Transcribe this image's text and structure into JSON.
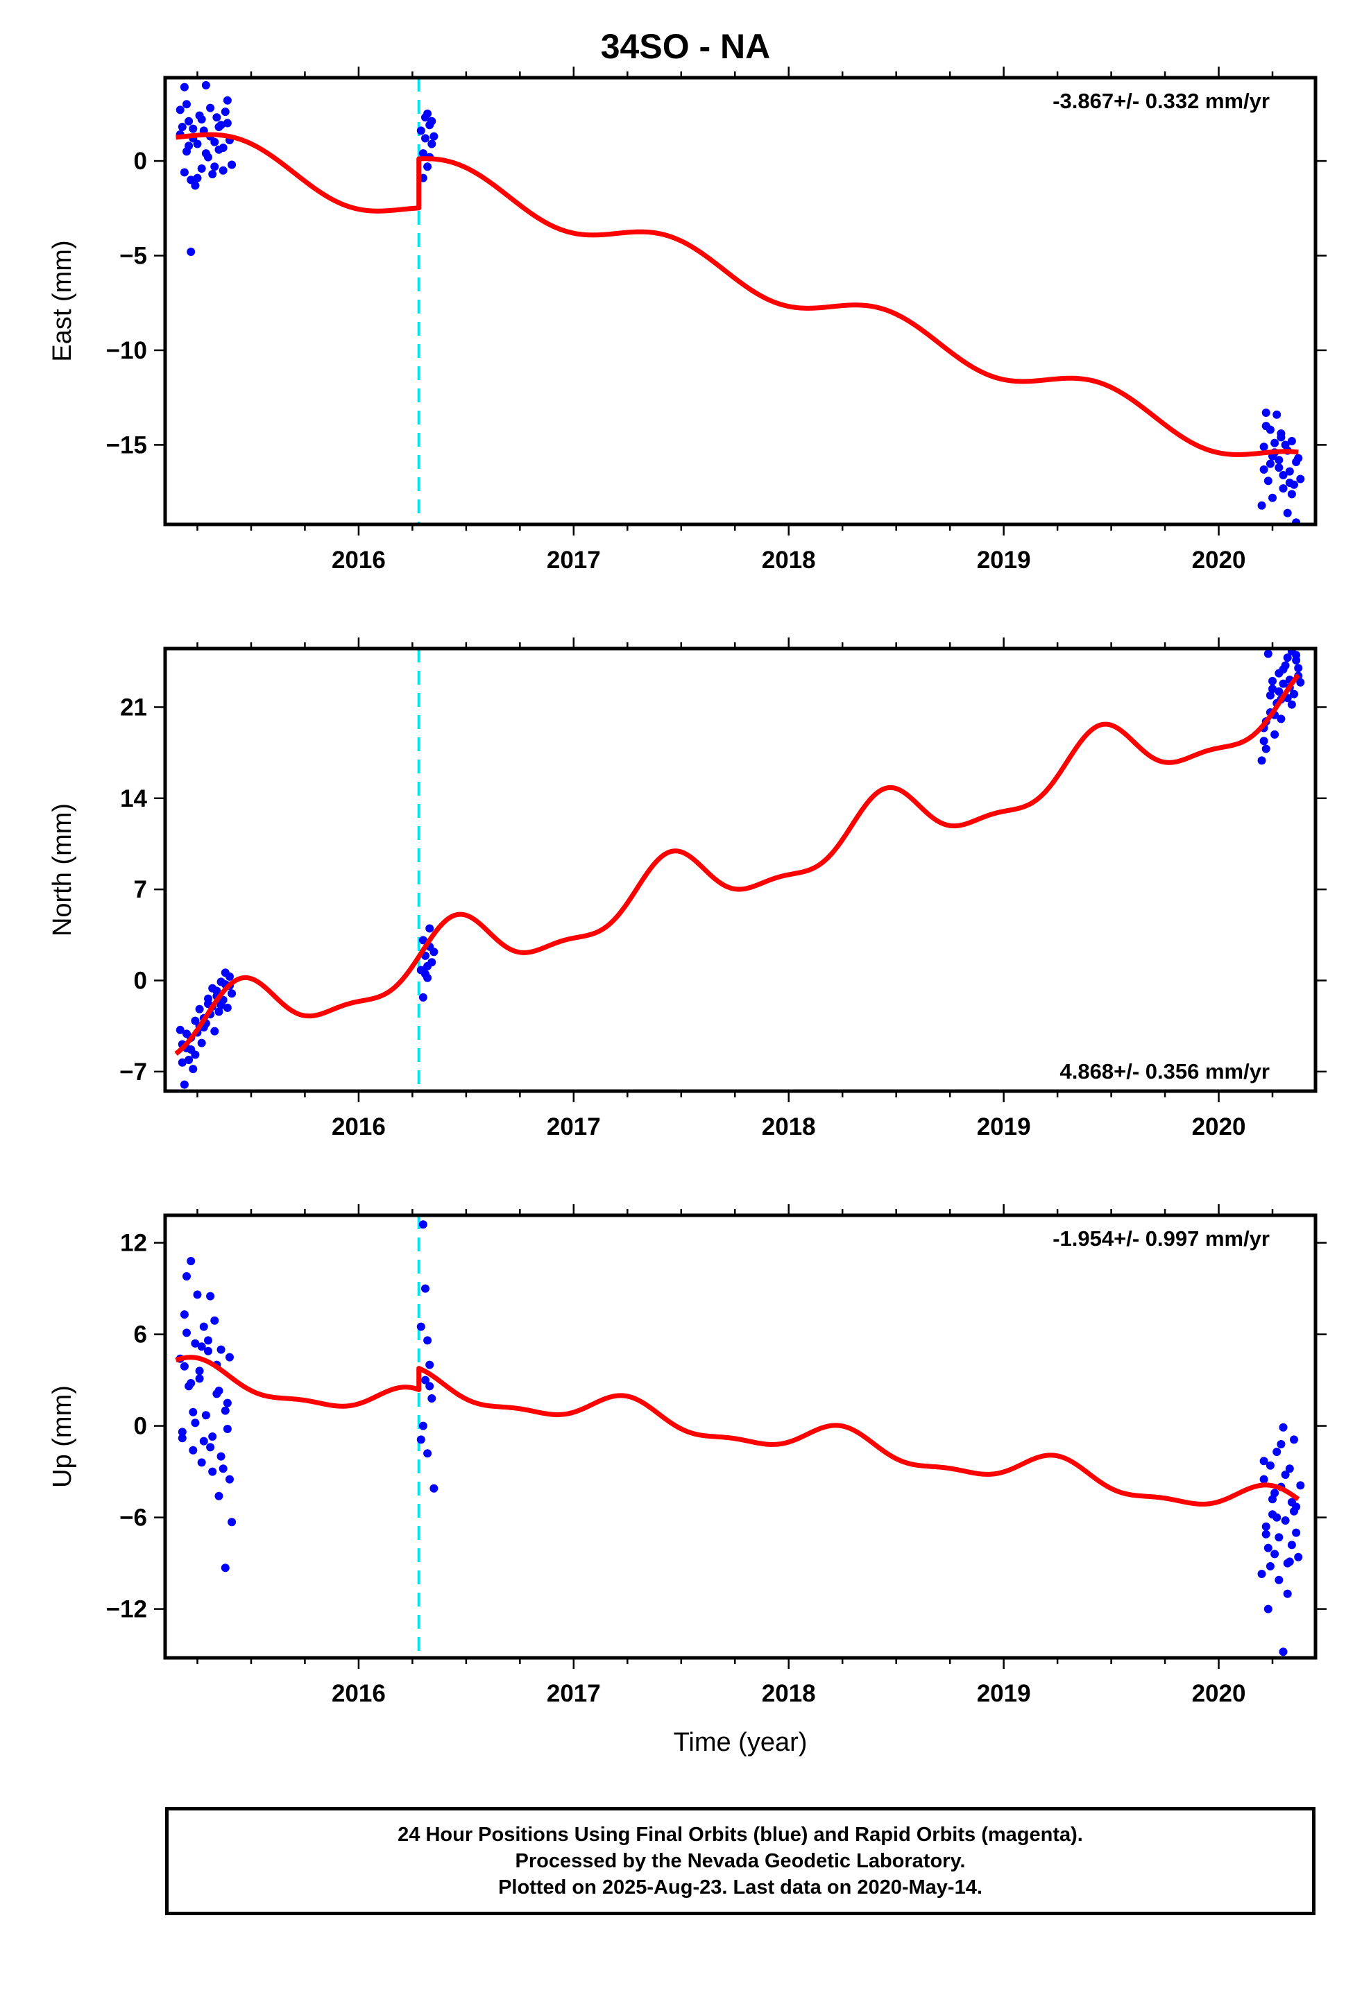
{
  "title": "34SO - NA",
  "footer": {
    "line1": "24 Hour Positions Using Final Orbits (blue) and Rapid Orbits (magenta).",
    "line2": "Processed by the Nevada Geodetic Laboratory.",
    "line3": "Plotted on 2025-Aug-23. Last data on 2020-May-14."
  },
  "colors": {
    "final_orbits": "#0000ff",
    "model_fit": "#ff0000",
    "equipment_change": "#00e5ee",
    "frame": "#000000"
  },
  "chart_data": [
    {
      "type": "scatter",
      "ylabel": "East (mm)",
      "xlabel": "",
      "annotation": "-3.867+/- 0.332 mm/yr",
      "annotation_position": "top-right",
      "xlim": [
        2015.1,
        2020.45
      ],
      "ylim": [
        -19.2,
        4.4
      ],
      "xticks": [
        2016,
        2017,
        2018,
        2019,
        2020
      ],
      "xticklabels": [
        "2016",
        "2017",
        "2018",
        "2019",
        "2020"
      ],
      "yticks": [
        -15,
        -10,
        -5,
        0
      ],
      "yticklabels": [
        "−15",
        "−10",
        "−5",
        "0"
      ],
      "vline": 2016.28,
      "observations": [
        {
          "t": [
            2015.17,
            2015.18,
            2015.19,
            2015.2,
            2015.21,
            2015.22,
            2015.23,
            2015.24,
            2015.25,
            2015.26,
            2015.27,
            2015.28,
            2015.29,
            2015.3,
            2015.31,
            2015.32,
            2015.33,
            2015.34,
            2015.35,
            2015.36,
            2015.37,
            2015.38,
            2015.39,
            2015.4,
            2015.41,
            2015.17,
            2015.19,
            2015.21,
            2015.23,
            2015.25,
            2015.27,
            2015.29,
            2015.31,
            2015.33,
            2015.35,
            2015.37,
            2015.39,
            2015.2,
            2015.22
          ],
          "y": [
            2.7,
            1.8,
            3.9,
            0.5,
            2.1,
            -4.8,
            1.2,
            -1.3,
            0.9,
            2.4,
            -0.4,
            1.6,
            4.0,
            0.2,
            2.8,
            -0.7,
            1.0,
            2.3,
            0.6,
            1.9,
            -0.5,
            2.6,
            3.2,
            1.1,
            -0.2,
            1.4,
            -0.6,
            0.8,
            1.7,
            -0.9,
            2.2,
            0.4,
            1.3,
            -0.3,
            1.8,
            0.7,
            2.0,
            3.0,
            -1.0
          ]
        },
        {
          "t": [
            2016.29,
            2016.3,
            2016.31,
            2016.32,
            2016.33,
            2016.34,
            2016.3,
            2016.32,
            2016.33,
            2016.35,
            2016.31,
            2016.34
          ],
          "y": [
            1.6,
            0.4,
            2.3,
            -0.3,
            1.9,
            0.9,
            -0.9,
            2.5,
            0.2,
            1.3,
            1.2,
            2.1
          ]
        },
        {
          "t": [
            2020.2,
            2020.21,
            2020.22,
            2020.23,
            2020.24,
            2020.25,
            2020.26,
            2020.27,
            2020.28,
            2020.29,
            2020.3,
            2020.31,
            2020.32,
            2020.33,
            2020.34,
            2020.35,
            2020.36,
            2020.37,
            2020.38,
            2020.22,
            2020.24,
            2020.26,
            2020.28,
            2020.3,
            2020.32,
            2020.34,
            2020.36,
            2020.21,
            2020.25,
            2020.29,
            2020.33
          ],
          "y": [
            -18.2,
            -15.1,
            -13.3,
            -16.9,
            -14.2,
            -17.8,
            -15.4,
            -13.4,
            -16.2,
            -14.6,
            -17.3,
            -15.0,
            -18.6,
            -16.4,
            -14.8,
            -17.1,
            -19.1,
            -15.7,
            -16.8,
            -14.0,
            -16.0,
            -14.9,
            -15.8,
            -16.6,
            -15.3,
            -17.6,
            -15.9,
            -16.3,
            -15.6,
            -14.4,
            -17.0
          ]
        }
      ],
      "model": {
        "rate": -3.867,
        "ref_time": 2015.15,
        "offset": 1.5,
        "annual_amp": 0.8,
        "annual_phase": 2015.45,
        "semiannual_amp": 0.0,
        "semiannual_phase": 0.0,
        "step": {
          "time": 2016.28,
          "size": 2.6
        }
      }
    },
    {
      "type": "scatter",
      "ylabel": "North (mm)",
      "xlabel": "",
      "annotation": "4.868+/- 0.356 mm/yr",
      "annotation_position": "bottom-right",
      "xlim": [
        2015.1,
        2020.45
      ],
      "ylim": [
        -8.5,
        25.5
      ],
      "xticks": [
        2016,
        2017,
        2018,
        2019,
        2020
      ],
      "xticklabels": [
        "2016",
        "2017",
        "2018",
        "2019",
        "2020"
      ],
      "yticks": [
        -7,
        0,
        7,
        14,
        21
      ],
      "yticklabels": [
        "−7",
        "0",
        "7",
        "14",
        "21"
      ],
      "vline": 2016.28,
      "observations": [
        {
          "t": [
            2015.17,
            2015.18,
            2015.19,
            2015.2,
            2015.21,
            2015.22,
            2015.23,
            2015.24,
            2015.25,
            2015.26,
            2015.27,
            2015.28,
            2015.29,
            2015.3,
            2015.31,
            2015.32,
            2015.33,
            2015.34,
            2015.35,
            2015.36,
            2015.37,
            2015.38,
            2015.39,
            2015.4,
            2015.41,
            2015.18,
            2015.2,
            2015.22,
            2015.24,
            2015.26,
            2015.28,
            2015.3,
            2015.32,
            2015.34,
            2015.36,
            2015.38,
            2015.4
          ],
          "y": [
            -3.8,
            -4.9,
            -8.0,
            -5.2,
            -6.1,
            -4.4,
            -6.8,
            -5.7,
            -4.0,
            -3.5,
            -4.8,
            -2.9,
            -3.3,
            -1.8,
            -2.6,
            -0.6,
            -3.9,
            -1.2,
            -2.4,
            -0.1,
            -1.5,
            0.6,
            -2.1,
            -0.4,
            -1.0,
            -6.3,
            -4.1,
            -5.3,
            -3.1,
            -2.2,
            -3.6,
            -1.4,
            -2.0,
            -0.8,
            -1.9,
            -0.3,
            0.3
          ]
        },
        {
          "t": [
            2016.29,
            2016.3,
            2016.31,
            2016.32,
            2016.33,
            2016.34,
            2016.3,
            2016.32,
            2016.33,
            2016.35,
            2016.31
          ],
          "y": [
            0.8,
            -1.3,
            1.9,
            0.2,
            2.6,
            1.4,
            3.1,
            1.1,
            4.0,
            2.2,
            0.5
          ]
        },
        {
          "t": [
            2020.2,
            2020.21,
            2020.22,
            2020.23,
            2020.24,
            2020.25,
            2020.26,
            2020.27,
            2020.28,
            2020.29,
            2020.3,
            2020.31,
            2020.32,
            2020.33,
            2020.34,
            2020.35,
            2020.36,
            2020.37,
            2020.38,
            2020.22,
            2020.24,
            2020.26,
            2020.28,
            2020.3,
            2020.32,
            2020.34,
            2020.36,
            2020.21,
            2020.25,
            2020.29,
            2020.33,
            2020.37
          ],
          "y": [
            16.9,
            19.4,
            17.8,
            25.1,
            20.6,
            22.4,
            18.9,
            21.3,
            23.6,
            20.1,
            22.8,
            24.2,
            21.7,
            23.1,
            25.3,
            22.0,
            24.6,
            23.4,
            22.9,
            19.9,
            21.9,
            20.4,
            22.2,
            23.9,
            24.8,
            21.2,
            25.0,
            18.4,
            23.0,
            21.6,
            22.5,
            24.0
          ]
        }
      ],
      "model": {
        "rate": 4.868,
        "ref_time": 2015.15,
        "offset": -4.3,
        "annual_amp": 2.2,
        "annual_phase": 2015.45,
        "semiannual_amp": 0.8,
        "semiannual_phase": 2015.45,
        "step": null
      }
    },
    {
      "type": "scatter",
      "ylabel": "Up (mm)",
      "xlabel": "Time (year)",
      "annotation": "-1.954+/- 0.997 mm/yr",
      "annotation_position": "top-right",
      "xlim": [
        2015.1,
        2020.45
      ],
      "ylim": [
        -15.2,
        13.8
      ],
      "xticks": [
        2016,
        2017,
        2018,
        2019,
        2020
      ],
      "xticklabels": [
        "2016",
        "2017",
        "2018",
        "2019",
        "2020"
      ],
      "yticks": [
        -12,
        -6,
        0,
        6,
        12
      ],
      "yticklabels": [
        "−12",
        "−6",
        "0",
        "6",
        "12"
      ],
      "vline": 2016.28,
      "observations": [
        {
          "t": [
            2015.17,
            2015.18,
            2015.19,
            2015.2,
            2015.21,
            2015.22,
            2015.23,
            2015.24,
            2015.25,
            2015.26,
            2015.27,
            2015.28,
            2015.29,
            2015.3,
            2015.31,
            2015.32,
            2015.33,
            2015.34,
            2015.35,
            2015.36,
            2015.37,
            2015.38,
            2015.39,
            2015.4,
            2015.41,
            2015.18,
            2015.2,
            2015.22,
            2015.24,
            2015.26,
            2015.28,
            2015.3,
            2015.32,
            2015.34,
            2015.36,
            2015.38,
            2015.4,
            2015.19,
            2015.23,
            2015.27,
            2015.31,
            2015.35,
            2015.39
          ],
          "y": [
            4.4,
            -0.8,
            7.3,
            9.8,
            2.6,
            10.8,
            -1.6,
            5.4,
            8.6,
            3.1,
            -2.4,
            6.5,
            0.7,
            4.9,
            8.5,
            -3.0,
            6.9,
            2.1,
            -4.6,
            5.0,
            -2.8,
            -9.3,
            1.5,
            4.5,
            -6.3,
            -0.4,
            6.1,
            2.8,
            0.2,
            3.6,
            -1.0,
            5.6,
            -0.7,
            4.0,
            -2.0,
            1.0,
            -3.5,
            3.9,
            0.9,
            5.2,
            -1.4,
            2.3,
            -0.2
          ]
        },
        {
          "t": [
            2016.29,
            2016.3,
            2016.31,
            2016.32,
            2016.33,
            2016.34,
            2016.3,
            2016.32,
            2016.33,
            2016.35,
            2016.31,
            2016.29
          ],
          "y": [
            6.5,
            13.2,
            9.0,
            -1.8,
            4.0,
            1.8,
            0.0,
            5.6,
            2.6,
            -4.1,
            3.0,
            -0.9
          ]
        },
        {
          "t": [
            2020.2,
            2020.21,
            2020.22,
            2020.23,
            2020.24,
            2020.25,
            2020.26,
            2020.27,
            2020.28,
            2020.29,
            2020.3,
            2020.31,
            2020.32,
            2020.33,
            2020.34,
            2020.35,
            2020.36,
            2020.37,
            2020.38,
            2020.22,
            2020.24,
            2020.26,
            2020.28,
            2020.3,
            2020.32,
            2020.34,
            2020.36,
            2020.21,
            2020.23,
            2020.25,
            2020.27,
            2020.29,
            2020.31,
            2020.33,
            2020.35
          ],
          "y": [
            -9.7,
            -3.5,
            -7.1,
            -12.0,
            -2.6,
            -5.8,
            -8.4,
            -1.7,
            -10.1,
            -4.0,
            -14.8,
            -6.2,
            -9.0,
            -2.8,
            -7.8,
            -0.9,
            -5.3,
            -8.6,
            -3.9,
            -6.6,
            -9.2,
            -4.4,
            -7.3,
            -0.1,
            -11.0,
            -5.0,
            -7.0,
            -2.3,
            -8.0,
            -4.8,
            -6.0,
            -1.2,
            -3.2,
            -8.9,
            -5.6
          ]
        }
      ],
      "model": {
        "rate": -1.954,
        "ref_time": 2015.15,
        "offset": 3.4,
        "annual_amp": 0.9,
        "annual_phase": 2015.24,
        "semiannual_amp": 0.35,
        "semiannual_phase": 2015.24,
        "step": {
          "time": 2016.28,
          "size": 1.4
        }
      }
    }
  ]
}
